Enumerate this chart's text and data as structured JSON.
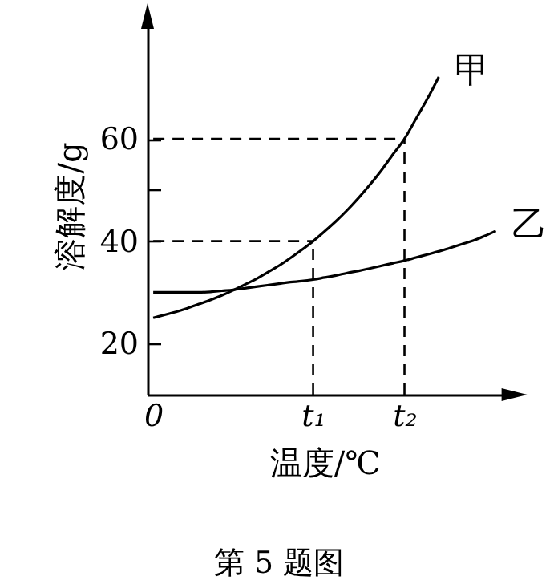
{
  "chart_data": {
    "type": "line",
    "xlabel": "温度/℃",
    "ylabel": "溶解度/g",
    "annotations": [
      "第 5 题图"
    ],
    "categories": [
      "0",
      null,
      null,
      null,
      null,
      null,
      null,
      null,
      null,
      null,
      null,
      null,
      null,
      null,
      "t₁",
      null,
      null,
      null,
      null,
      null,
      null,
      null,
      "t₂",
      null,
      null,
      null,
      null,
      null,
      null,
      null,
      null
    ],
    "ylim": [
      10,
      84
    ],
    "yticks": [
      20,
      40,
      {
        "value": 50,
        "label": null
      },
      60
    ],
    "grid": false,
    "legend": false,
    "line_style": "solid",
    "ref_lines": [
      {
        "axis": "y",
        "value": 40,
        "line_style": "dashed"
      },
      {
        "axis": "y",
        "value": 60,
        "line_style": "dashed"
      },
      {
        "axis": "x",
        "value": "t₁",
        "line_style": "dashed"
      },
      {
        "axis": "x",
        "value": "t₂",
        "line_style": "dashed"
      }
    ],
    "series": [
      {
        "name": "甲",
        "color": "#000000",
        "values": [
          25,
          25.6,
          26.2,
          26.9,
          27.7,
          28.5,
          29.4,
          30.4,
          31.5,
          32.6,
          33.9,
          35.2,
          36.7,
          38.3,
          40,
          41.9,
          43.9,
          46.1,
          48.5,
          51.1,
          53.9,
          57,
          60,
          63.9,
          67.8,
          72.1,
          null,
          null,
          null,
          null,
          null
        ]
      },
      {
        "name": "乙",
        "color": "#000000",
        "values": [
          30,
          30,
          30,
          30,
          30,
          30.1,
          30.3,
          30.5,
          30.8,
          31.1,
          31.4,
          31.7,
          32,
          32.2,
          32.5,
          32.9,
          33.3,
          33.8,
          34.2,
          34.7,
          35.2,
          35.7,
          36.2,
          36.8,
          37.4,
          38,
          38.7,
          39.4,
          40.1,
          41,
          42
        ]
      }
    ]
  }
}
